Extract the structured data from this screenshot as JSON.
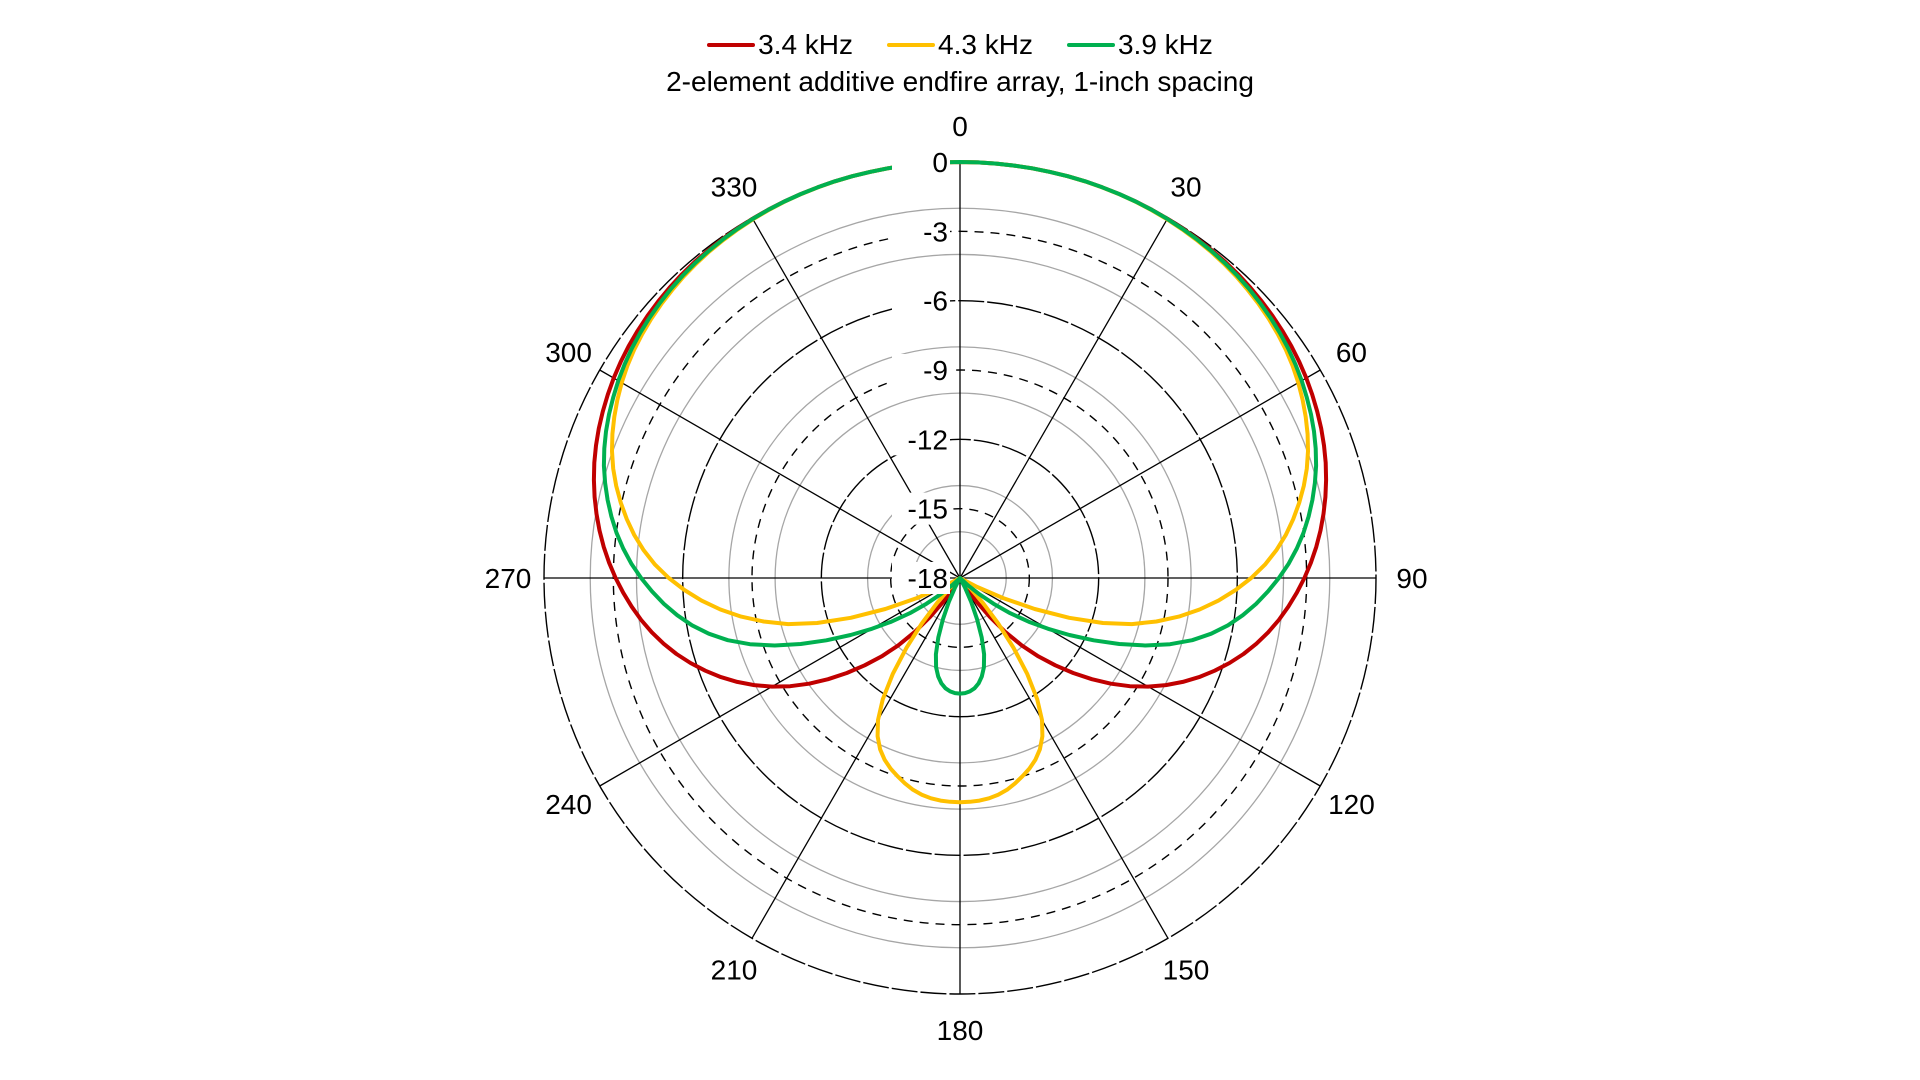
{
  "chart_data": {
    "type": "polar",
    "title": "2-element additive endfire array, 1-inch spacing",
    "legend_position": "top",
    "radial_axis": {
      "unit": "dB",
      "range": [
        -18,
        0
      ],
      "tick_labels": [
        "0",
        "-3",
        "-6",
        "-9",
        "-12",
        "-15",
        "-18"
      ],
      "major_ticks": [
        0,
        -3,
        -6,
        -9,
        -12,
        -15
      ],
      "minor_rings": [
        -2,
        -4,
        -8,
        -10,
        -14,
        -16
      ]
    },
    "angular_axis": {
      "unit": "degrees",
      "direction": "clockwise",
      "zero_at": "top",
      "tick_labels": [
        "0",
        "30",
        "60",
        "90",
        "120",
        "150",
        "180",
        "210",
        "240",
        "270",
        "300",
        "330"
      ]
    },
    "angles": [
      0,
      15,
      30,
      45,
      60,
      75,
      90,
      105,
      120,
      135,
      150,
      165,
      180,
      195,
      210,
      225,
      240,
      255,
      270,
      285,
      300,
      315,
      330,
      345
    ],
    "series": [
      {
        "name": "3.4 kHz",
        "color": "#C00000",
        "values": [
          0,
          0,
          -0.05,
          -0.23,
          -0.7,
          -1.6,
          -3.1,
          -5.3,
          -8.6,
          -13.2,
          -18,
          -18,
          -18,
          -18,
          -18,
          -13.2,
          -8.6,
          -5.3,
          -3.1,
          -1.6,
          -0.7,
          -0.23,
          -0.05,
          0
        ]
      },
      {
        "name": "4.3 kHz",
        "color": "#FFC000",
        "values": [
          0,
          0,
          -0.08,
          -0.38,
          -1.1,
          -2.6,
          -5.4,
          -10.3,
          -18,
          -17.3,
          -10.9,
          -8.8,
          -8.3,
          -8.8,
          -10.9,
          -17.3,
          -18,
          -10.3,
          -5.4,
          -2.6,
          -1.1,
          -0.38,
          -0.08,
          0
        ]
      },
      {
        "name": "3.9 kHz",
        "color": "#00B050",
        "values": [
          0,
          0,
          -0.06,
          -0.31,
          -0.93,
          -2.1,
          -4.2,
          -7.6,
          -13.6,
          -18,
          -18,
          -14,
          -13,
          -14,
          -18,
          -18,
          -13.6,
          -7.6,
          -4.2,
          -2.1,
          -0.93,
          -0.31,
          -0.06,
          0
        ]
      }
    ]
  }
}
